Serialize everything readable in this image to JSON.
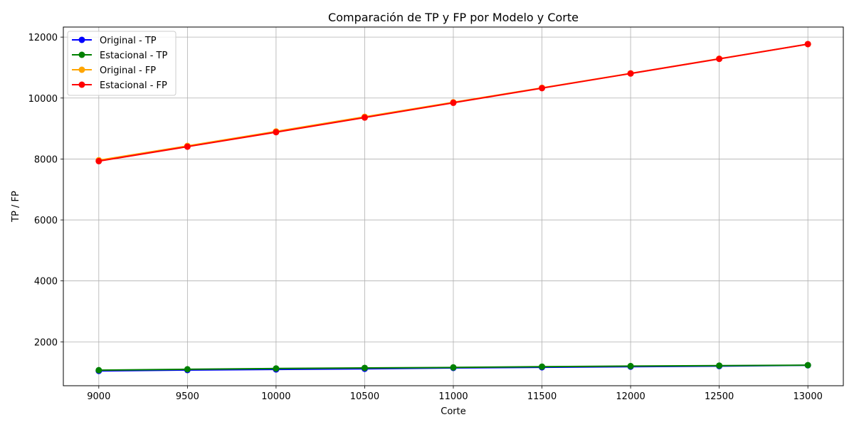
{
  "chart_data": {
    "type": "line",
    "title": "Comparación de TP y FP por Modelo y Corte",
    "xlabel": "Corte",
    "ylabel": "TP / FP",
    "x": [
      9000,
      9500,
      10000,
      10500,
      11000,
      11500,
      12000,
      12500,
      13000
    ],
    "xlim": [
      8800,
      13200
    ],
    "ylim": [
      560,
      12330
    ],
    "xticks": [
      9000,
      9500,
      10000,
      10500,
      11000,
      11500,
      12000,
      12500,
      13000
    ],
    "yticks": [
      2000,
      4000,
      6000,
      8000,
      10000,
      12000
    ],
    "grid": true,
    "legend_position": "top-left",
    "series": [
      {
        "name": "Original - TP",
        "color": "#0000ff",
        "values": [
          1045,
          1075,
          1095,
          1115,
          1145,
          1165,
          1185,
          1205,
          1230
        ]
      },
      {
        "name": "Estacional - TP",
        "color": "#008000",
        "values": [
          1070,
          1100,
          1125,
          1145,
          1160,
          1185,
          1205,
          1220,
          1235
        ]
      },
      {
        "name": "Original - FP",
        "color": "#ffa500",
        "values": [
          7960,
          8430,
          8905,
          9385,
          9860,
          10335,
          10810,
          11290,
          11770
        ]
      },
      {
        "name": "Estacional - FP",
        "color": "#ff0000",
        "values": [
          7930,
          8405,
          8880,
          9360,
          9845,
          10325,
          10805,
          11285,
          11770
        ]
      }
    ]
  }
}
